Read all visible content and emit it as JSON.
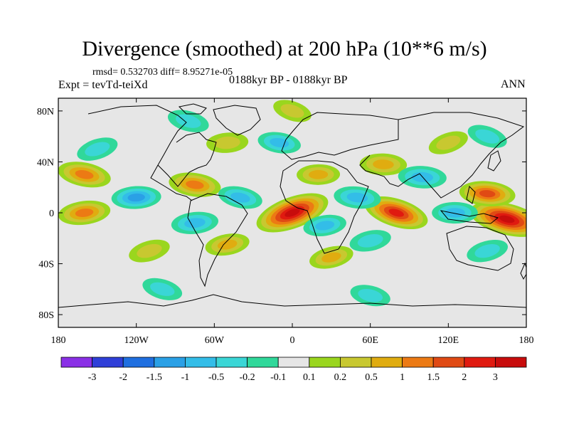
{
  "header": {
    "title": "Divergence (smoothed) at 200 hPa (10**6 m/s)",
    "stats": "rmsd= 0.532703 diff= 8.95271e-05",
    "experiment": "Expt = tevTd-teiXd",
    "period": "0188kyr BP - 0188kyr BP",
    "season": "ANN"
  },
  "chart_data": {
    "type": "heatmap",
    "title": "Divergence (smoothed) at 200 hPa (10**6 m/s)",
    "xlabel": "",
    "ylabel": "",
    "xlim": [
      -180,
      180
    ],
    "ylim": [
      -90,
      90
    ],
    "x_ticks": [
      {
        "value": -180,
        "label": "180"
      },
      {
        "value": -120,
        "label": "120W"
      },
      {
        "value": -60,
        "label": "60W"
      },
      {
        "value": 0,
        "label": "0"
      },
      {
        "value": 60,
        "label": "60E"
      },
      {
        "value": 120,
        "label": "120E"
      },
      {
        "value": 180,
        "label": "180"
      }
    ],
    "y_ticks": [
      {
        "value": 80,
        "label": "80N"
      },
      {
        "value": 40,
        "label": "40N"
      },
      {
        "value": 0,
        "label": "0"
      },
      {
        "value": -40,
        "label": "40S"
      },
      {
        "value": -80,
        "label": "80S"
      }
    ],
    "levels": [
      -3,
      -2,
      -1.5,
      -1,
      -0.5,
      -0.2,
      -0.1,
      0.1,
      0.2,
      0.5,
      1,
      1.5,
      2,
      3
    ],
    "colors": [
      "#8a30e6",
      "#2f3fd8",
      "#1f6fe0",
      "#2aa0e6",
      "#33bde8",
      "#3ad6d6",
      "#30d89a",
      "#e6e6e6",
      "#9ad61e",
      "#c8c830",
      "#e0ac10",
      "#ec7a14",
      "#e04a14",
      "#e01a10",
      "#c80c0c"
    ],
    "features": [
      {
        "lon": 0,
        "lat": 0,
        "value": 3.0
      },
      {
        "lon": 80,
        "lat": 0,
        "value": 2.2
      },
      {
        "lon": 165,
        "lat": -5,
        "value": 3.0
      },
      {
        "lon": -160,
        "lat": 30,
        "value": 1.3
      },
      {
        "lon": -75,
        "lat": 22,
        "value": 1.2
      },
      {
        "lon": 150,
        "lat": 15,
        "value": 1.5
      },
      {
        "lon": 70,
        "lat": 38,
        "value": 0.8
      },
      {
        "lon": 20,
        "lat": 30,
        "value": 0.5
      },
      {
        "lon": -50,
        "lat": 55,
        "value": 0.4
      },
      {
        "lon": -160,
        "lat": 0,
        "value": 1.2
      },
      {
        "lon": -50,
        "lat": -25,
        "value": 0.6
      },
      {
        "lon": 30,
        "lat": -35,
        "value": 0.6
      },
      {
        "lon": -110,
        "lat": -30,
        "value": 0.4
      },
      {
        "lon": 120,
        "lat": 55,
        "value": 0.3
      },
      {
        "lon": 0,
        "lat": 80,
        "value": 0.2
      },
      {
        "lon": -80,
        "lat": 72,
        "value": -0.4
      },
      {
        "lon": -40,
        "lat": 12,
        "value": -0.6
      },
      {
        "lon": -10,
        "lat": 55,
        "value": -0.5
      },
      {
        "lon": 50,
        "lat": 12,
        "value": -0.8
      },
      {
        "lon": 100,
        "lat": 28,
        "value": -0.9
      },
      {
        "lon": 125,
        "lat": 0,
        "value": -0.7
      },
      {
        "lon": -120,
        "lat": 12,
        "value": -1.0
      },
      {
        "lon": -75,
        "lat": -8,
        "value": -0.8
      },
      {
        "lon": 25,
        "lat": -10,
        "value": -0.5
      },
      {
        "lon": 60,
        "lat": -22,
        "value": -0.4
      },
      {
        "lon": 150,
        "lat": -30,
        "value": -0.4
      },
      {
        "lon": -150,
        "lat": 50,
        "value": -0.4
      },
      {
        "lon": 150,
        "lat": 60,
        "value": -0.3
      },
      {
        "lon": -100,
        "lat": -60,
        "value": -0.3
      },
      {
        "lon": 60,
        "lat": -65,
        "value": -0.3
      }
    ]
  }
}
